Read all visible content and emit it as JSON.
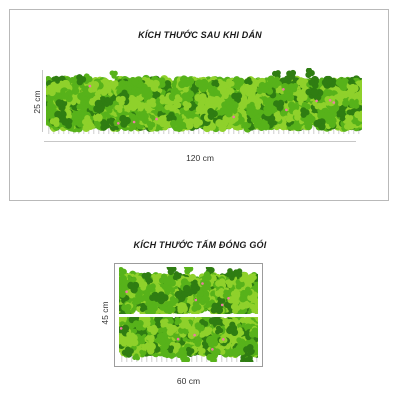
{
  "top_section": {
    "title": "KÍCH THƯỚC SAU KHI DÁN",
    "width_label": "120 cm",
    "height_label": "25 cm"
  },
  "bottom_section": {
    "title": "KÍCH THƯỚC TẤM ĐÓNG GÓI",
    "width_label": "60 cm",
    "height_label": "45 cm"
  },
  "colors": {
    "leaf_light": "#8fd12b",
    "leaf_mid": "#57b21a",
    "leaf_dark": "#2f7d12",
    "flower_pink": "#f07aa6",
    "fence": "#dcdcdc"
  },
  "icons": [
    "shamrock-clover-sticker"
  ]
}
